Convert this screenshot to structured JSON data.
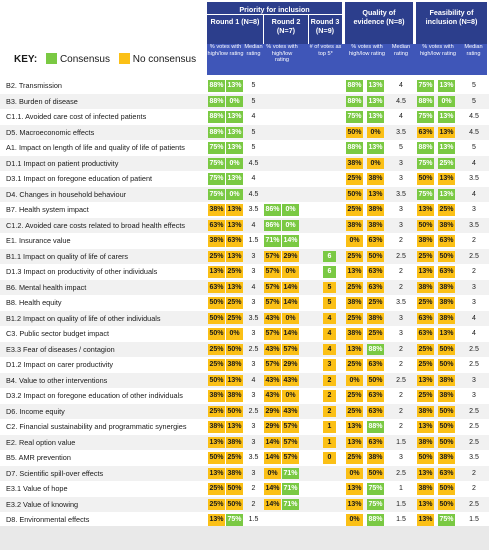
{
  "chart_data": {
    "type": "table",
    "key": {
      "label": "KEY:",
      "consensus": "Consensus",
      "no_consensus": "No consensus"
    },
    "colors": {
      "consensus": "#7ac943",
      "no_consensus": "#fbc016",
      "header_dark": "#2c3e8c",
      "header_light": "#3f56b8"
    },
    "header": {
      "priority": "Priority for inclusion",
      "round1": "Round 1 (N=8)",
      "round2": "Round 2 (N=7)",
      "round3": "Round 3 (N=9)",
      "quality": "Quality of evidence (N=8)",
      "feasibility": "Feasibility of inclusion (N=8)",
      "votes": "% votes with high/low rating",
      "median": "Median rating",
      "top5": "# of votes as top 5*"
    },
    "rows": [
      {
        "label": "B2. Transmission",
        "r1": [
          "88%",
          "13%",
          "g"
        ],
        "r1m": "5",
        "r2": null,
        "r2m": "",
        "r3": null,
        "q": [
          "88%",
          "13%",
          "g"
        ],
        "qm": "4",
        "f": [
          "75%",
          "13%",
          "g"
        ],
        "fm": "5"
      },
      {
        "label": "B3. Burden of disease",
        "r1": [
          "88%",
          "0%",
          "g"
        ],
        "r1m": "5",
        "r2": null,
        "r2m": "",
        "r3": null,
        "q": [
          "88%",
          "13%",
          "g"
        ],
        "qm": "4.5",
        "f": [
          "88%",
          "0%",
          "g"
        ],
        "fm": "5"
      },
      {
        "label": "C1.1. Avoided care cost of infected patients",
        "r1": [
          "88%",
          "13%",
          "g"
        ],
        "r1m": "4",
        "r2": null,
        "r2m": "",
        "r3": null,
        "q": [
          "75%",
          "13%",
          "g"
        ],
        "qm": "4",
        "f": [
          "75%",
          "13%",
          "g"
        ],
        "fm": "4.5"
      },
      {
        "label": "D5. Macroeconomic effects",
        "r1": [
          "88%",
          "13%",
          "g"
        ],
        "r1m": "5",
        "r2": null,
        "r2m": "",
        "r3": null,
        "q": [
          "50%",
          "0%",
          "y"
        ],
        "qm": "3.5",
        "f": [
          "63%",
          "13%",
          "y"
        ],
        "fm": "4.5"
      },
      {
        "label": "A1. Impact on length of life and quality of life of patients",
        "r1": [
          "75%",
          "13%",
          "g"
        ],
        "r1m": "5",
        "r2": null,
        "r2m": "",
        "r3": null,
        "q": [
          "88%",
          "13%",
          "g"
        ],
        "qm": "5",
        "f": [
          "88%",
          "13%",
          "g"
        ],
        "fm": "5"
      },
      {
        "label": "D1.1 Impact on patient productivity",
        "r1": [
          "75%",
          "0%",
          "g"
        ],
        "r1m": "4.5",
        "r2": null,
        "r2m": "",
        "r3": null,
        "q": [
          "38%",
          "0%",
          "y"
        ],
        "qm": "3",
        "f": [
          "75%",
          "25%",
          "g"
        ],
        "fm": "4"
      },
      {
        "label": "D3.1 Impact on foregone education of patient",
        "r1": [
          "75%",
          "13%",
          "g"
        ],
        "r1m": "4",
        "r2": null,
        "r2m": "",
        "r3": null,
        "q": [
          "25%",
          "38%",
          "y"
        ],
        "qm": "3",
        "f": [
          "50%",
          "13%",
          "y"
        ],
        "fm": "3.5"
      },
      {
        "label": "D4. Changes in household behaviour",
        "r1": [
          "75%",
          "0%",
          "g"
        ],
        "r1m": "4.5",
        "r2": null,
        "r2m": "",
        "r3": null,
        "q": [
          "50%",
          "13%",
          "y"
        ],
        "qm": "3.5",
        "f": [
          "75%",
          "13%",
          "g"
        ],
        "fm": "4"
      },
      {
        "label": "B7. Health system impact",
        "r1": [
          "38%",
          "13%",
          "y"
        ],
        "r1m": "3.5",
        "r2": [
          "86%",
          "0%",
          "g"
        ],
        "r2m": "",
        "r3": null,
        "q": [
          "25%",
          "38%",
          "y"
        ],
        "qm": "3",
        "f": [
          "13%",
          "25%",
          "y"
        ],
        "fm": "3"
      },
      {
        "label": "C1.2. Avoided care costs related to broad health effects",
        "r1": [
          "63%",
          "13%",
          "y"
        ],
        "r1m": "4",
        "r2": [
          "86%",
          "0%",
          "g"
        ],
        "r2m": "",
        "r3": null,
        "q": [
          "38%",
          "38%",
          "y"
        ],
        "qm": "3",
        "f": [
          "50%",
          "38%",
          "y"
        ],
        "fm": "3.5"
      },
      {
        "label": "E1. Insurance value",
        "r1": [
          "38%",
          "63%",
          "y"
        ],
        "r1m": "1.5",
        "r2": [
          "71%",
          "14%",
          "g"
        ],
        "r2m": "",
        "r3": null,
        "q": [
          "0%",
          "63%",
          "y"
        ],
        "qm": "2",
        "f": [
          "38%",
          "63%",
          "y"
        ],
        "fm": "2"
      },
      {
        "label": "B1.1 Impact on quality of life of carers",
        "r1": [
          "25%",
          "13%",
          "y"
        ],
        "r1m": "3",
        "r2": [
          "57%",
          "29%",
          "y"
        ],
        "r2m": "",
        "r3": [
          "6",
          "g"
        ],
        "q": [
          "25%",
          "50%",
          "y"
        ],
        "qm": "2.5",
        "f": [
          "25%",
          "50%",
          "y"
        ],
        "fm": "2.5"
      },
      {
        "label": "D1.3 Impact on productivity of other individuals",
        "r1": [
          "13%",
          "25%",
          "y"
        ],
        "r1m": "3",
        "r2": [
          "57%",
          "0%",
          "y"
        ],
        "r2m": "",
        "r3": [
          "6",
          "g"
        ],
        "q": [
          "13%",
          "63%",
          "y"
        ],
        "qm": "2",
        "f": [
          "13%",
          "63%",
          "y"
        ],
        "fm": "2"
      },
      {
        "label": "B6. Mental health impact",
        "r1": [
          "63%",
          "13%",
          "y"
        ],
        "r1m": "4",
        "r2": [
          "57%",
          "14%",
          "y"
        ],
        "r2m": "",
        "r3": [
          "5",
          "y"
        ],
        "q": [
          "25%",
          "63%",
          "y"
        ],
        "qm": "2",
        "f": [
          "38%",
          "38%",
          "y"
        ],
        "fm": "3"
      },
      {
        "label": "B8. Health equity",
        "r1": [
          "50%",
          "25%",
          "y"
        ],
        "r1m": "3",
        "r2": [
          "57%",
          "14%",
          "y"
        ],
        "r2m": "",
        "r3": [
          "5",
          "y"
        ],
        "q": [
          "38%",
          "25%",
          "y"
        ],
        "qm": "3.5",
        "f": [
          "25%",
          "38%",
          "y"
        ],
        "fm": "3"
      },
      {
        "label": "B1.2 Impact on quality of life of other individuals",
        "r1": [
          "50%",
          "25%",
          "y"
        ],
        "r1m": "3.5",
        "r2": [
          "43%",
          "0%",
          "y"
        ],
        "r2m": "",
        "r3": [
          "4",
          "y"
        ],
        "q": [
          "25%",
          "38%",
          "y"
        ],
        "qm": "3",
        "f": [
          "63%",
          "38%",
          "y"
        ],
        "fm": "4"
      },
      {
        "label": "C3. Public sector budget impact",
        "r1": [
          "50%",
          "0%",
          "y"
        ],
        "r1m": "3",
        "r2": [
          "57%",
          "14%",
          "y"
        ],
        "r2m": "",
        "r3": [
          "4",
          "y"
        ],
        "q": [
          "38%",
          "25%",
          "y"
        ],
        "qm": "3",
        "f": [
          "63%",
          "13%",
          "y"
        ],
        "fm": "4"
      },
      {
        "label": "E3.3 Fear of diseases / contagion",
        "r1": [
          "25%",
          "50%",
          "y"
        ],
        "r1m": "2.5",
        "r2": [
          "43%",
          "57%",
          "y"
        ],
        "r2m": "",
        "r3": [
          "4",
          "y"
        ],
        "q": [
          "13%",
          "88%",
          "y2"
        ],
        "qm": "2",
        "f": [
          "25%",
          "50%",
          "y"
        ],
        "fm": "2.5"
      },
      {
        "label": "D1.2 Impact on carer productivity",
        "r1": [
          "25%",
          "38%",
          "y"
        ],
        "r1m": "3",
        "r2": [
          "57%",
          "29%",
          "y"
        ],
        "r2m": "",
        "r3": [
          "3",
          "y"
        ],
        "q": [
          "25%",
          "63%",
          "y"
        ],
        "qm": "2",
        "f": [
          "25%",
          "50%",
          "y"
        ],
        "fm": "2.5"
      },
      {
        "label": "B4. Value to other interventions",
        "r1": [
          "50%",
          "13%",
          "y"
        ],
        "r1m": "4",
        "r2": [
          "43%",
          "43%",
          "y"
        ],
        "r2m": "",
        "r3": [
          "2",
          "y"
        ],
        "q": [
          "0%",
          "50%",
          "y"
        ],
        "qm": "2.5",
        "f": [
          "13%",
          "38%",
          "y"
        ],
        "fm": "3"
      },
      {
        "label": "D3.2 Impact on foregone education of other individuals",
        "r1": [
          "38%",
          "38%",
          "y"
        ],
        "r1m": "3",
        "r2": [
          "43%",
          "0%",
          "y"
        ],
        "r2m": "",
        "r3": [
          "2",
          "y"
        ],
        "q": [
          "25%",
          "63%",
          "y"
        ],
        "qm": "2",
        "f": [
          "25%",
          "38%",
          "y"
        ],
        "fm": "3"
      },
      {
        "label": "D6. Income equity",
        "r1": [
          "25%",
          "50%",
          "y"
        ],
        "r1m": "2.5",
        "r2": [
          "29%",
          "43%",
          "y"
        ],
        "r2m": "",
        "r3": [
          "2",
          "y"
        ],
        "q": [
          "25%",
          "63%",
          "y"
        ],
        "qm": "2",
        "f": [
          "38%",
          "50%",
          "y"
        ],
        "fm": "2.5"
      },
      {
        "label": "C2. Financial sustainability and programmatic synergies",
        "r1": [
          "38%",
          "13%",
          "y"
        ],
        "r1m": "3",
        "r2": [
          "29%",
          "57%",
          "y"
        ],
        "r2m": "",
        "r3": [
          "1",
          "y"
        ],
        "q": [
          "13%",
          "88%",
          "y2"
        ],
        "qm": "2",
        "f": [
          "13%",
          "50%",
          "y"
        ],
        "fm": "2.5"
      },
      {
        "label": "E2. Real option value",
        "r1": [
          "13%",
          "38%",
          "y"
        ],
        "r1m": "3",
        "r2": [
          "14%",
          "57%",
          "y"
        ],
        "r2m": "",
        "r3": [
          "1",
          "y"
        ],
        "q": [
          "13%",
          "63%",
          "y"
        ],
        "qm": "1.5",
        "f": [
          "38%",
          "50%",
          "y"
        ],
        "fm": "2.5"
      },
      {
        "label": "B5. AMR prevention",
        "r1": [
          "50%",
          "25%",
          "y"
        ],
        "r1m": "3.5",
        "r2": [
          "14%",
          "57%",
          "y"
        ],
        "r2m": "",
        "r3": [
          "0",
          "y"
        ],
        "q": [
          "25%",
          "38%",
          "y"
        ],
        "qm": "3",
        "f": [
          "50%",
          "38%",
          "y"
        ],
        "fm": "3.5"
      },
      {
        "label": "D7. Scientific spill-over effects",
        "r1": [
          "13%",
          "38%",
          "y"
        ],
        "r1m": "3",
        "r2": [
          "0%",
          "71%",
          "y2"
        ],
        "r2m": "",
        "r3": null,
        "q": [
          "0%",
          "50%",
          "y"
        ],
        "qm": "2.5",
        "f": [
          "13%",
          "63%",
          "y"
        ],
        "fm": "2"
      },
      {
        "label": "E3.1 Value of hope",
        "r1": [
          "25%",
          "50%",
          "y"
        ],
        "r1m": "2",
        "r2": [
          "14%",
          "71%",
          "y2"
        ],
        "r2m": "",
        "r3": null,
        "q": [
          "13%",
          "75%",
          "y2"
        ],
        "qm": "1",
        "f": [
          "38%",
          "50%",
          "y"
        ],
        "fm": "2"
      },
      {
        "label": "E3.2 Value of knowing",
        "r1": [
          "25%",
          "50%",
          "y"
        ],
        "r1m": "2",
        "r2": [
          "14%",
          "71%",
          "y2"
        ],
        "r2m": "",
        "r3": null,
        "q": [
          "13%",
          "75%",
          "y2"
        ],
        "qm": "1.5",
        "f": [
          "13%",
          "50%",
          "y"
        ],
        "fm": "2.5"
      },
      {
        "label": "D8. Environmental effects",
        "r1": [
          "13%",
          "75%",
          "y2"
        ],
        "r1m": "1.5",
        "r2": null,
        "r2m": "",
        "r3": null,
        "q": [
          "0%",
          "88%",
          "y2"
        ],
        "qm": "1.5",
        "f": [
          "13%",
          "75%",
          "y2"
        ],
        "fm": "1.5"
      }
    ]
  }
}
